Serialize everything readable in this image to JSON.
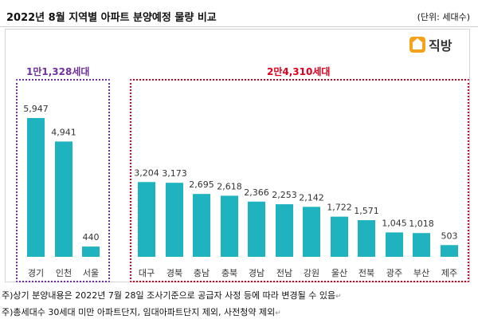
{
  "title": "2022년 8월 지역별 아파트 분양예정 물량 비교",
  "unit": "(단위: 세대수)",
  "brand": {
    "name": "직방",
    "icon": "house-logo-icon",
    "color": "#f5a31a"
  },
  "groups": [
    {
      "label": "1만1,328세대",
      "color": "#7030a0"
    },
    {
      "label": "2만4,310세대",
      "color": "#e0001b"
    }
  ],
  "chart_data": {
    "type": "bar",
    "categories": [
      "경기",
      "인천",
      "서울",
      "대구",
      "경북",
      "충남",
      "충북",
      "경남",
      "전남",
      "강원",
      "울산",
      "전북",
      "광주",
      "부산",
      "제주"
    ],
    "values": [
      5947,
      4941,
      440,
      3204,
      3173,
      2695,
      2618,
      2366,
      2253,
      2142,
      1722,
      1571,
      1045,
      1018,
      503
    ],
    "value_labels": [
      "5,947",
      "4,941",
      "440",
      "3,204",
      "3,173",
      "2,695",
      "2,618",
      "2,366",
      "2,253",
      "2,142",
      "1,722",
      "1,571",
      "1,045",
      "1,018",
      "503"
    ],
    "title": "2022년 8월 지역별 아파트 분양예정 물량 비교",
    "xlabel": "",
    "ylabel": "",
    "ylim": [
      0,
      6500
    ],
    "grid": false,
    "bar_color": "#1fb3c0"
  },
  "footnotes": [
    {
      "text": "주)상기 분양내용은 2022년 7월 28일 조사기준으로 공급자 사정 등에 따라 변경될 수 있음",
      "mark": "↵"
    },
    {
      "text": "주)총세대수 30세대 미만 아파트단지, 임대아파트단지 제외, 사전청약 제외",
      "mark": "↵"
    }
  ]
}
